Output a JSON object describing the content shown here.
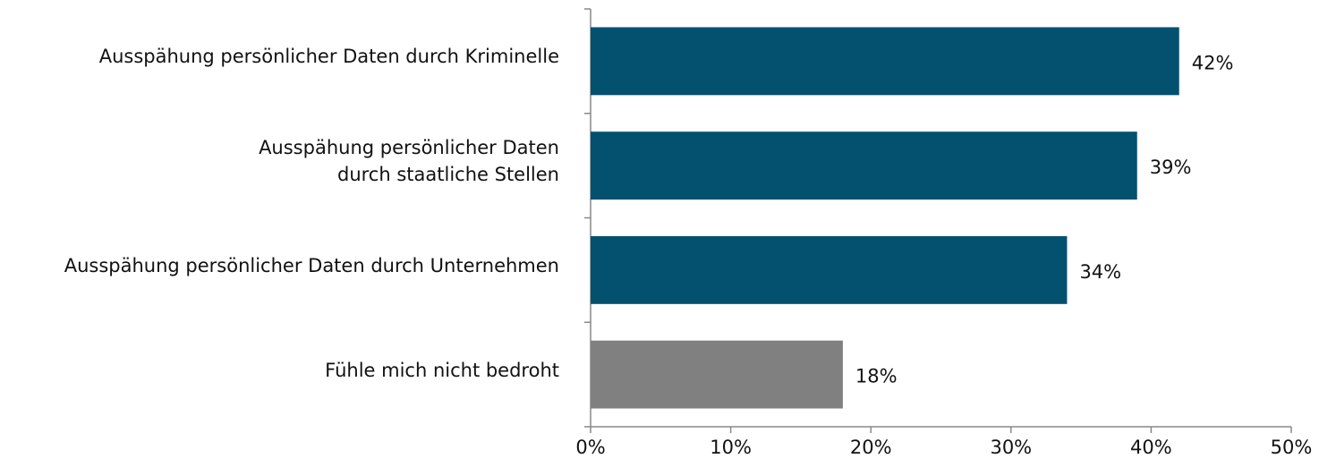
{
  "chart_data": {
    "type": "barh",
    "categories": [
      "Ausspähung persönlicher Daten durch Kriminelle",
      "Ausspähung persönlicher Daten\ndurch staatliche Stellen",
      "Ausspähung persönlicher Daten durch Unternehmen",
      "Fühle mich nicht bedroht"
    ],
    "values": [
      42,
      39,
      34,
      18
    ],
    "value_labels": [
      "42%",
      "39%",
      "34%",
      "18%"
    ],
    "colors": [
      "#03506f",
      "#03506f",
      "#03506f",
      "#808080"
    ],
    "xlim": [
      0,
      50
    ],
    "xticks": [
      {
        "value": 0,
        "label": "0%"
      },
      {
        "value": 10,
        "label": "10%"
      },
      {
        "value": 20,
        "label": "20%"
      },
      {
        "value": 30,
        "label": "30%"
      },
      {
        "value": 40,
        "label": "40%"
      },
      {
        "value": 50,
        "label": "50%"
      }
    ],
    "grid": false
  }
}
